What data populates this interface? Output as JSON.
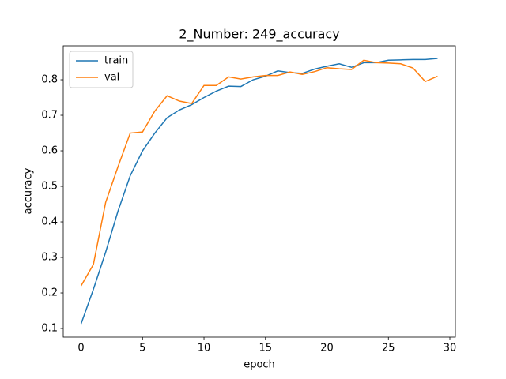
{
  "chart_data": {
    "type": "line",
    "title": "2_Number: 249_accuracy",
    "x_label": "epoch",
    "y_label": "accuracy",
    "x": [
      0,
      1,
      2,
      3,
      4,
      5,
      6,
      7,
      8,
      9,
      10,
      11,
      12,
      13,
      14,
      15,
      16,
      17,
      18,
      19,
      20,
      21,
      22,
      23,
      24,
      25,
      26,
      27,
      28,
      29
    ],
    "series": [
      {
        "name": "train",
        "color": "#1f77b4",
        "values": [
          0.113,
          0.21,
          0.315,
          0.43,
          0.53,
          0.6,
          0.65,
          0.693,
          0.715,
          0.73,
          0.75,
          0.768,
          0.782,
          0.781,
          0.8,
          0.81,
          0.825,
          0.82,
          0.818,
          0.83,
          0.838,
          0.845,
          0.835,
          0.848,
          0.848,
          0.855,
          0.856,
          0.857,
          0.857,
          0.86
        ]
      },
      {
        "name": "val",
        "color": "#ff7f0e",
        "values": [
          0.22,
          0.28,
          0.455,
          0.555,
          0.65,
          0.653,
          0.712,
          0.755,
          0.74,
          0.733,
          0.784,
          0.784,
          0.808,
          0.802,
          0.808,
          0.812,
          0.812,
          0.822,
          0.815,
          0.823,
          0.834,
          0.831,
          0.829,
          0.855,
          0.848,
          0.847,
          0.845,
          0.833,
          0.795,
          0.81
        ]
      }
    ],
    "xlim": [
      -1.45,
      30.45
    ],
    "ylim": [
      0.0756,
      0.8956
    ],
    "xticks": [
      0,
      5,
      10,
      15,
      20,
      25,
      30
    ],
    "yticks": [
      0.1,
      0.2,
      0.3,
      0.4,
      0.5,
      0.6,
      0.7,
      0.8
    ],
    "legend": "upper left",
    "grid": false
  }
}
